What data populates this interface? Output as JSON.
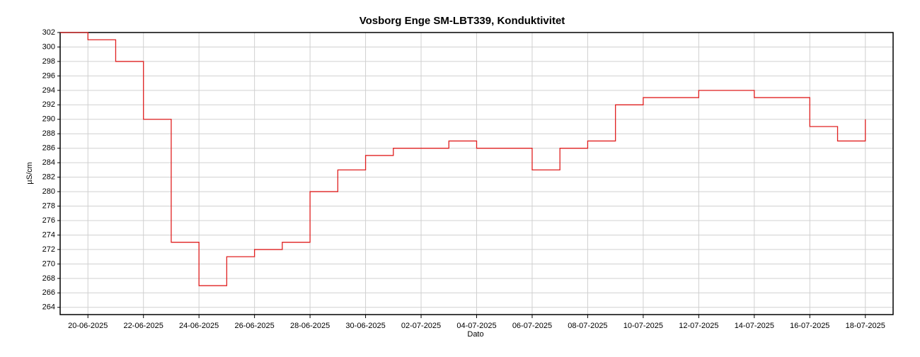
{
  "chart_data": {
    "type": "line",
    "title": "Vosborg Enge SM-LBT339, Konduktivitet",
    "x_label": "Dato",
    "y_label": "µS/cm",
    "x": [
      "19-06-2025",
      "20-06-2025",
      "21-06-2025",
      "22-06-2025",
      "23-06-2025",
      "24-06-2025",
      "25-06-2025",
      "26-06-2025",
      "27-06-2025",
      "28-06-2025",
      "29-06-2025",
      "30-06-2025",
      "01-07-2025",
      "02-07-2025",
      "03-07-2025",
      "04-07-2025",
      "05-07-2025",
      "06-07-2025",
      "07-07-2025",
      "08-07-2025",
      "09-07-2025",
      "10-07-2025",
      "11-07-2025",
      "12-07-2025",
      "13-07-2025",
      "14-07-2025",
      "15-07-2025",
      "16-07-2025",
      "17-07-2025",
      "18-07-2025"
    ],
    "series": [
      {
        "name": "Konduktivitet",
        "color": "#e02020",
        "values": [
          302,
          301,
          298,
          290,
          273,
          267,
          271,
          272,
          273,
          280,
          283,
          285,
          286,
          286,
          287,
          286,
          286,
          283,
          286,
          287,
          292,
          293,
          293,
          294,
          294,
          293,
          293,
          289,
          287,
          290
        ]
      }
    ],
    "xlim": [
      "19-06-2025",
      "19-07-2025"
    ],
    "xticks": [
      "20-06-2025",
      "22-06-2025",
      "24-06-2025",
      "26-06-2025",
      "28-06-2025",
      "30-06-2025",
      "02-07-2025",
      "04-07-2025",
      "06-07-2025",
      "08-07-2025",
      "10-07-2025",
      "12-07-2025",
      "14-07-2025",
      "16-07-2025",
      "18-07-2025"
    ],
    "ylim": [
      263,
      302
    ],
    "yticks": [
      264,
      266,
      268,
      270,
      272,
      274,
      276,
      278,
      280,
      282,
      284,
      286,
      288,
      290,
      292,
      294,
      296,
      298,
      300,
      302
    ],
    "grid": true
  }
}
